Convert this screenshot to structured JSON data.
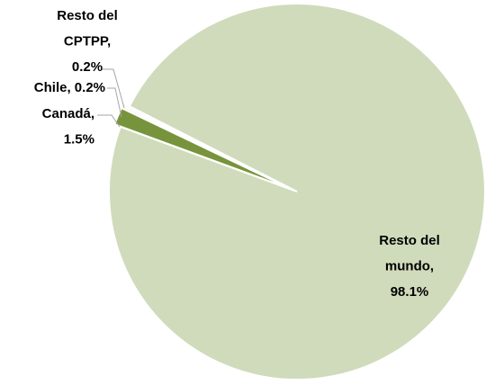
{
  "chart_data": {
    "type": "pie",
    "values": [
      98.1,
      1.5,
      0.2,
      0.2
    ],
    "data_labels": [
      [
        "Resto del",
        "mundo,",
        "98.1%"
      ],
      [
        "Canadá,",
        "1.5%"
      ],
      [
        "Chile, 0.2%"
      ],
      [
        "Resto del",
        "CPTPP,",
        "0.2%"
      ]
    ],
    "colors": [
      "#cfdbbb",
      "#77933c",
      "#e3ead6",
      "#eef2e6"
    ]
  }
}
